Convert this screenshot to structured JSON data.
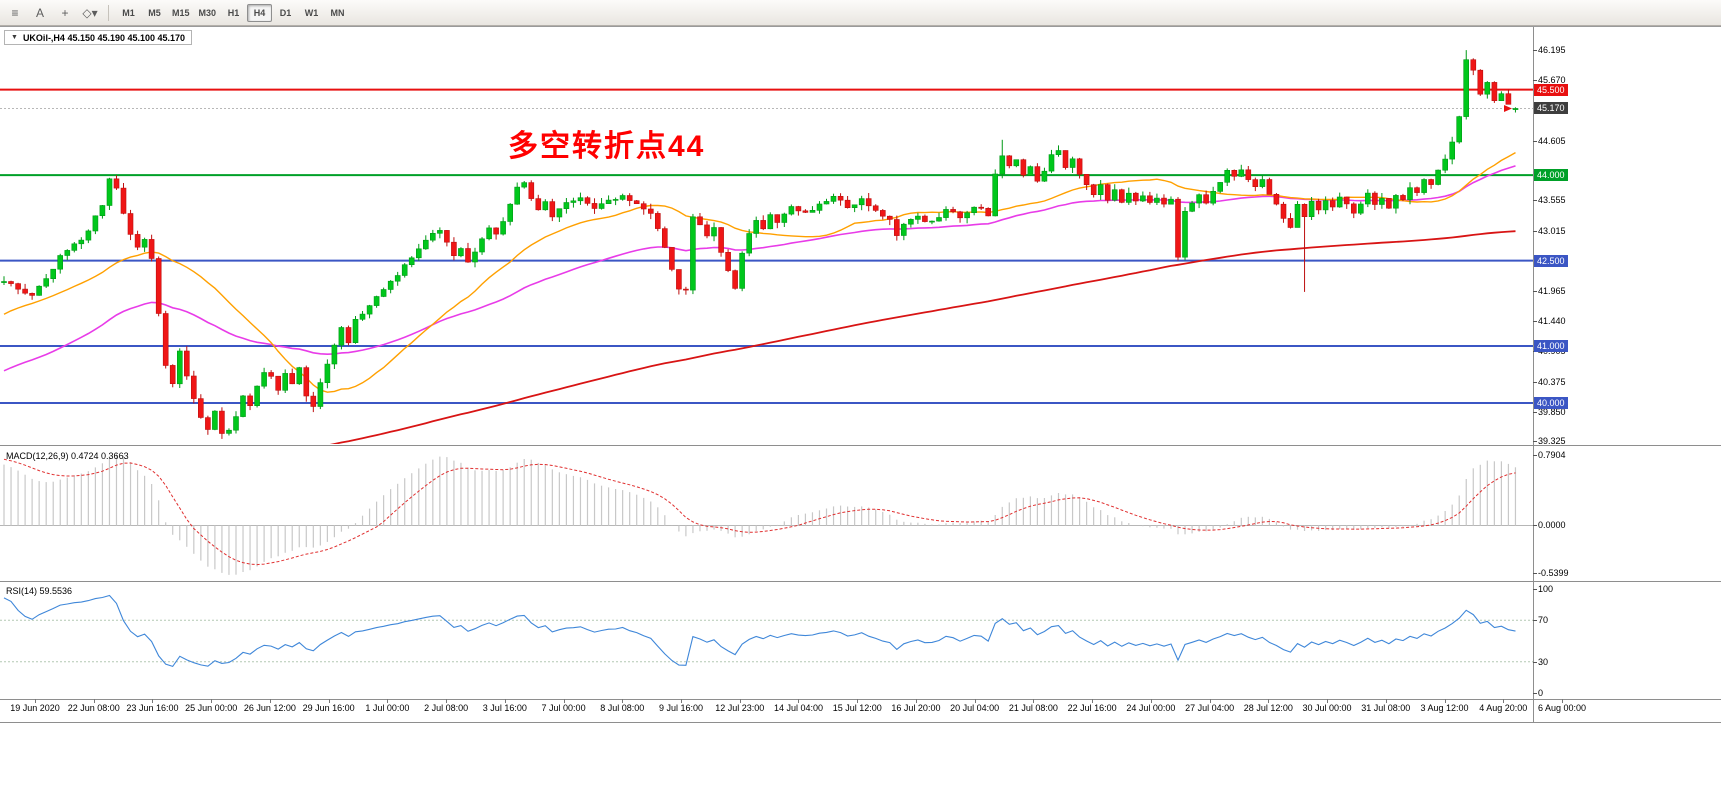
{
  "toolbar": {
    "icons": [
      {
        "name": "chart-list-icon",
        "glyph": "≡"
      },
      {
        "name": "text-tool-icon",
        "glyph": "A"
      },
      {
        "name": "crosshair-tool-icon",
        "glyph": "+"
      },
      {
        "name": "shapes-tool-icon",
        "glyph": "◇▾"
      }
    ],
    "timeframes": [
      {
        "label": "M1",
        "active": false
      },
      {
        "label": "M5",
        "active": false
      },
      {
        "label": "M15",
        "active": false
      },
      {
        "label": "M30",
        "active": false
      },
      {
        "label": "H1",
        "active": false
      },
      {
        "label": "H4",
        "active": true
      },
      {
        "label": "D1",
        "active": false
      },
      {
        "label": "W1",
        "active": false
      },
      {
        "label": "MN",
        "active": false
      }
    ]
  },
  "main": {
    "title": "UKOil-,H4 45.150 45.190 45.100 45.170",
    "collapse_arrow": "▼"
  },
  "chart_data": {
    "type": "candlestick",
    "symbol": "UKOil-",
    "timeframe": "H4",
    "ohlc": {
      "open": "45.150",
      "high": "45.190",
      "low": "45.100",
      "close": "45.170"
    },
    "annotation": {
      "text": "多空转折点44",
      "color": "#ff0000"
    },
    "y_axis_ticks": [
      {
        "label": "46.195",
        "price": 46.195
      },
      {
        "label": "45.670",
        "price": 45.67
      },
      {
        "label": "44.605",
        "price": 44.605
      },
      {
        "label": "43.555",
        "price": 43.555
      },
      {
        "label": "43.015",
        "price": 43.015
      },
      {
        "label": "41.965",
        "price": 41.965
      },
      {
        "label": "41.440",
        "price": 41.44
      },
      {
        "label": "40.905",
        "price": 40.905
      },
      {
        "label": "40.375",
        "price": 40.375
      },
      {
        "label": "39.850",
        "price": 39.85
      },
      {
        "label": "39.325",
        "price": 39.325
      }
    ],
    "badges": [
      {
        "label": "45.500",
        "price": 45.5,
        "color": "#e81010",
        "name": "resistance-line-badge"
      },
      {
        "label": "45.170",
        "price": 45.17,
        "color": "#3e3e3e",
        "name": "last-price-badge"
      },
      {
        "label": "44.000",
        "price": 44.0,
        "color": "#00a028",
        "name": "pivot-line-badge"
      },
      {
        "label": "42.500",
        "price": 42.5,
        "color": "#3b56c4",
        "name": "support-line-badge-1"
      },
      {
        "label": "41.000",
        "price": 41.0,
        "color": "#3b56c4",
        "name": "support-line-badge-2"
      },
      {
        "label": "40.000",
        "price": 40.0,
        "color": "#3b56c4",
        "name": "support-line-badge-3"
      }
    ],
    "hlines": [
      {
        "price": 45.5,
        "color": "#e81010",
        "width": 2,
        "label": "45.500"
      },
      {
        "price": 44.0,
        "color": "#00a028",
        "width": 2,
        "label": "44.000"
      },
      {
        "price": 42.5,
        "color": "#3b56c4",
        "width": 2,
        "label": "42.500"
      },
      {
        "price": 41.0,
        "color": "#3b56c4",
        "width": 2,
        "label": "41.000"
      },
      {
        "price": 40.0,
        "color": "#3b56c4",
        "width": 2,
        "label": "40.000"
      }
    ],
    "bid_line": {
      "price": 45.17,
      "color": "#b8b8b8"
    },
    "moving_averages": [
      {
        "name": "fast-ma-line",
        "type": "sma",
        "period": 24,
        "color": "#ffa000",
        "width": 1.4
      },
      {
        "name": "mid-ma-line",
        "type": "ema",
        "period": 55,
        "color": "#e83ce8",
        "width": 1.6
      },
      {
        "name": "slow-ma-line",
        "type": "sma",
        "period": 200,
        "color": "#d81414",
        "width": 1.8
      }
    ],
    "candle_colors": {
      "up": "#00c71c",
      "up_border": "#009a16",
      "down": "#ef1616",
      "down_border": "#bd0f0f"
    },
    "history_bars": 200,
    "visible_bars": 216,
    "price_path_desc": "close-price anchors [bar_index, price]; bars 0-199 off-screen history, 200-415 visible window",
    "price_path": [
      [
        0,
        35.0
      ],
      [
        60,
        36.5
      ],
      [
        120,
        38.5
      ],
      [
        150,
        39.5
      ],
      [
        165,
        38.5
      ],
      [
        178,
        40.8
      ],
      [
        190,
        41.8
      ],
      [
        199,
        42.1
      ],
      [
        200,
        42.15
      ],
      [
        202,
        42.0
      ],
      [
        204,
        41.85
      ],
      [
        206,
        42.2
      ],
      [
        208,
        42.55
      ],
      [
        210,
        42.75
      ],
      [
        212,
        43.05
      ],
      [
        214,
        43.5
      ],
      [
        215,
        43.9
      ],
      [
        216,
        43.75
      ],
      [
        217,
        43.3
      ],
      [
        218,
        43.0
      ],
      [
        219,
        42.7
      ],
      [
        220,
        42.85
      ],
      [
        221,
        42.5
      ],
      [
        222,
        41.6
      ],
      [
        223,
        40.7
      ],
      [
        224,
        40.35
      ],
      [
        225,
        40.9
      ],
      [
        226,
        40.45
      ],
      [
        227,
        40.1
      ],
      [
        228,
        39.7
      ],
      [
        229,
        39.55
      ],
      [
        230,
        39.85
      ],
      [
        231,
        39.45
      ],
      [
        232,
        39.5
      ],
      [
        233,
        39.8
      ],
      [
        234,
        40.1
      ],
      [
        235,
        39.95
      ],
      [
        236,
        40.3
      ],
      [
        237,
        40.55
      ],
      [
        238,
        40.45
      ],
      [
        239,
        40.2
      ],
      [
        240,
        40.5
      ],
      [
        241,
        40.3
      ],
      [
        242,
        40.6
      ],
      [
        243,
        40.15
      ],
      [
        244,
        39.95
      ],
      [
        245,
        40.4
      ],
      [
        246,
        40.7
      ],
      [
        247,
        41.0
      ],
      [
        248,
        41.3
      ],
      [
        249,
        41.1
      ],
      [
        250,
        41.45
      ],
      [
        252,
        41.7
      ],
      [
        254,
        41.95
      ],
      [
        256,
        42.25
      ],
      [
        258,
        42.55
      ],
      [
        260,
        42.9
      ],
      [
        262,
        43.05
      ],
      [
        263,
        42.8
      ],
      [
        264,
        42.55
      ],
      [
        265,
        42.7
      ],
      [
        266,
        42.45
      ],
      [
        267,
        42.65
      ],
      [
        268,
        42.9
      ],
      [
        269,
        43.1
      ],
      [
        270,
        42.95
      ],
      [
        271,
        43.2
      ],
      [
        272,
        43.5
      ],
      [
        273,
        43.75
      ],
      [
        274,
        43.9
      ],
      [
        275,
        43.6
      ],
      [
        276,
        43.4
      ],
      [
        277,
        43.55
      ],
      [
        278,
        43.3
      ],
      [
        279,
        43.45
      ],
      [
        280,
        43.5
      ],
      [
        282,
        43.6
      ],
      [
        284,
        43.4
      ],
      [
        286,
        43.55
      ],
      [
        288,
        43.65
      ],
      [
        290,
        43.5
      ],
      [
        292,
        43.3
      ],
      [
        293,
        43.05
      ],
      [
        294,
        42.7
      ],
      [
        295,
        42.3
      ],
      [
        296,
        42.0
      ],
      [
        297,
        41.95
      ],
      [
        298,
        43.3
      ],
      [
        299,
        43.15
      ],
      [
        300,
        42.9
      ],
      [
        301,
        43.05
      ],
      [
        302,
        42.65
      ],
      [
        303,
        42.35
      ],
      [
        304,
        42.05
      ],
      [
        305,
        42.6
      ],
      [
        306,
        42.95
      ],
      [
        307,
        43.2
      ],
      [
        308,
        43.1
      ],
      [
        309,
        43.3
      ],
      [
        310,
        43.2
      ],
      [
        312,
        43.45
      ],
      [
        314,
        43.3
      ],
      [
        316,
        43.5
      ],
      [
        318,
        43.65
      ],
      [
        320,
        43.45
      ],
      [
        322,
        43.55
      ],
      [
        324,
        43.35
      ],
      [
        326,
        43.2
      ],
      [
        327,
        42.95
      ],
      [
        328,
        43.15
      ],
      [
        330,
        43.3
      ],
      [
        332,
        43.15
      ],
      [
        334,
        43.4
      ],
      [
        336,
        43.25
      ],
      [
        338,
        43.45
      ],
      [
        340,
        43.3
      ],
      [
        341,
        44.0
      ],
      [
        342,
        44.35
      ],
      [
        343,
        44.15
      ],
      [
        344,
        44.3
      ],
      [
        345,
        44.0
      ],
      [
        346,
        44.15
      ],
      [
        347,
        43.9
      ],
      [
        348,
        44.1
      ],
      [
        349,
        44.35
      ],
      [
        350,
        44.4
      ],
      [
        351,
        44.15
      ],
      [
        352,
        44.3
      ],
      [
        353,
        44.05
      ],
      [
        354,
        43.8
      ],
      [
        355,
        43.65
      ],
      [
        356,
        43.8
      ],
      [
        357,
        43.6
      ],
      [
        358,
        43.7
      ],
      [
        359,
        43.5
      ],
      [
        360,
        43.7
      ],
      [
        361,
        43.55
      ],
      [
        362,
        43.65
      ],
      [
        363,
        43.5
      ],
      [
        364,
        43.6
      ],
      [
        365,
        43.45
      ],
      [
        366,
        43.55
      ],
      [
        367,
        42.6
      ],
      [
        368,
        43.35
      ],
      [
        369,
        43.5
      ],
      [
        370,
        43.65
      ],
      [
        371,
        43.55
      ],
      [
        372,
        43.75
      ],
      [
        373,
        43.9
      ],
      [
        374,
        44.05
      ],
      [
        375,
        43.95
      ],
      [
        376,
        44.1
      ],
      [
        377,
        43.95
      ],
      [
        378,
        43.8
      ],
      [
        379,
        43.9
      ],
      [
        380,
        43.65
      ],
      [
        381,
        43.45
      ],
      [
        382,
        43.25
      ],
      [
        383,
        43.1
      ],
      [
        384,
        43.45
      ],
      [
        385,
        43.3
      ],
      [
        386,
        43.5
      ],
      [
        387,
        43.35
      ],
      [
        388,
        43.55
      ],
      [
        389,
        43.4
      ],
      [
        390,
        43.6
      ],
      [
        391,
        43.45
      ],
      [
        392,
        43.3
      ],
      [
        393,
        43.5
      ],
      [
        394,
        43.65
      ],
      [
        395,
        43.45
      ],
      [
        396,
        43.6
      ],
      [
        397,
        43.4
      ],
      [
        398,
        43.65
      ],
      [
        399,
        43.55
      ],
      [
        400,
        43.8
      ],
      [
        401,
        43.7
      ],
      [
        402,
        43.95
      ],
      [
        403,
        43.85
      ],
      [
        404,
        44.1
      ],
      [
        405,
        44.3
      ],
      [
        406,
        44.6
      ],
      [
        407,
        45.05
      ],
      [
        408,
        46.0
      ],
      [
        409,
        45.8
      ],
      [
        410,
        45.45
      ],
      [
        411,
        45.6
      ],
      [
        412,
        45.3
      ],
      [
        413,
        45.45
      ],
      [
        414,
        45.25
      ],
      [
        415,
        45.17
      ]
    ],
    "wick_overrides": [
      {
        "i": 231,
        "low": 39.37
      },
      {
        "i": 297,
        "low": 41.9
      },
      {
        "i": 342,
        "high": 44.62
      },
      {
        "i": 367,
        "low": 42.5
      },
      {
        "i": 385,
        "low": 41.95
      },
      {
        "i": 408,
        "high": 46.195
      },
      {
        "i": 409,
        "high": 46.05
      }
    ],
    "last_candle": {
      "open": 45.15,
      "high": 45.19,
      "low": 45.1,
      "close": 45.17
    },
    "macd": {
      "label": "MACD(12,26,9) 0.4724 0.3663",
      "fast": 12,
      "slow": 26,
      "signal": 9,
      "value": 0.4724,
      "signal_value": 0.3663,
      "range": {
        "max": 0.7904,
        "min": -0.5399
      },
      "axis_labels": [
        "0.7904",
        "0.0000",
        "-0.5399"
      ],
      "hist_color": "#c8c8c8",
      "signal_color": "#e03030"
    },
    "rsi": {
      "label": "RSI(14) 59.5536",
      "period": 14,
      "value": 59.5536,
      "levels": [
        70,
        30
      ],
      "axis_values": [
        100,
        70,
        30,
        0
      ],
      "axis_labels": [
        "100",
        "70",
        "30",
        "0"
      ],
      "line_color": "#3f87d9",
      "level_color": "#b4c8b4"
    },
    "time_labels": [
      "19 Jun 2020",
      "22 Jun 08:00",
      "23 Jun 16:00",
      "25 Jun 00:00",
      "26 Jun 12:00",
      "29 Jun 16:00",
      "1 Jul 00:00",
      "2 Jul 08:00",
      "3 Jul 16:00",
      "7 Jul 00:00",
      "8 Jul 08:00",
      "9 Jul 16:00",
      "12 Jul 23:00",
      "14 Jul 04:00",
      "15 Jul 12:00",
      "16 Jul 20:00",
      "20 Jul 04:00",
      "21 Jul 08:00",
      "22 Jul 16:00",
      "24 Jul 00:00",
      "27 Jul 04:00",
      "28 Jul 12:00",
      "30 Jul 00:00",
      "31 Jul 08:00",
      "3 Aug 12:00",
      "4 Aug 20:00",
      "6 Aug 00:00"
    ]
  }
}
